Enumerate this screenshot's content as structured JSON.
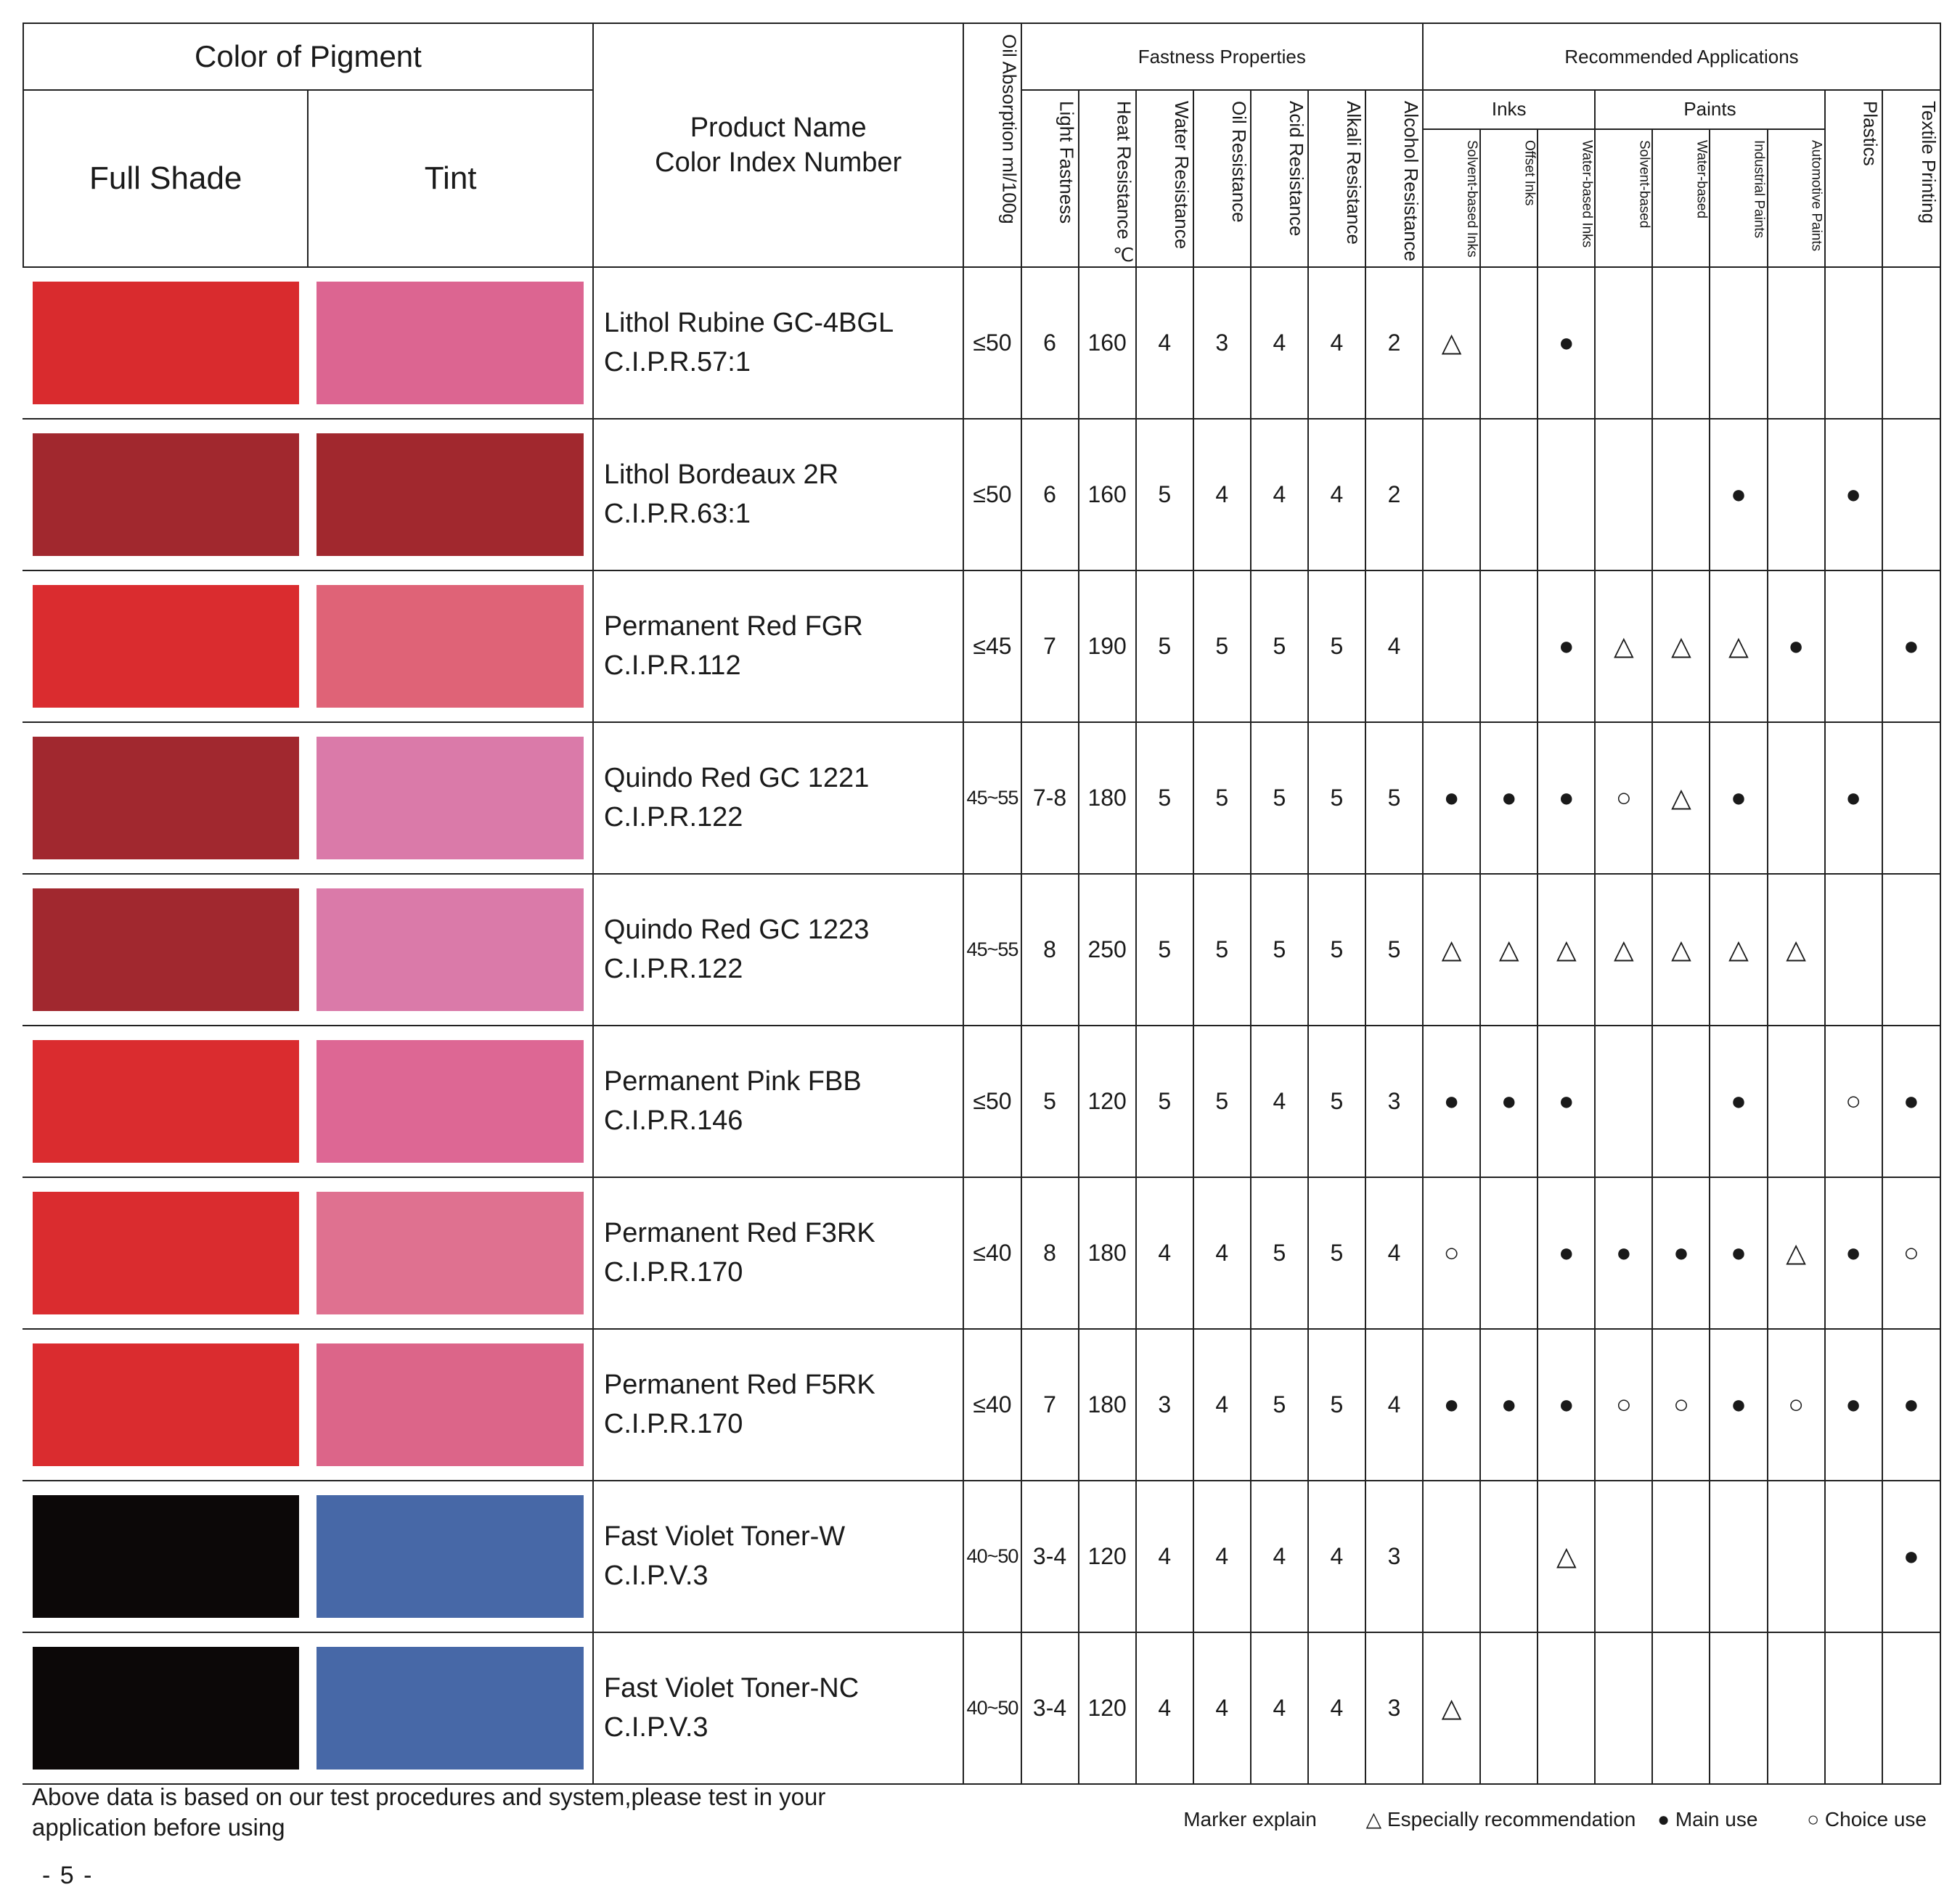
{
  "header": {
    "color_of_pigment": "Color of  Pigment",
    "full_shade": "Full Shade",
    "tint": "Tint",
    "product_line1": "Product Name",
    "product_line2": "Color Index Number",
    "oil_absorption": "Oil Absorption ml/100g",
    "fastness_group": "Fastness Properties",
    "applications_group": "Recommended Applications",
    "inks_group": "Inks",
    "paints_group": "Paints",
    "fastness_cols": [
      "Light Fastness",
      "Heat Resistance ℃",
      "Water Resistance",
      "Oil Resistance",
      "Acid Resistance",
      "Alkali Resistance",
      "Alcohol Resistance"
    ],
    "ink_cols": [
      "Solvent-based Inks",
      "Offset Inks",
      "Water-based Inks"
    ],
    "paint_cols": [
      "Solvent-based",
      "Water-based",
      "Industrial Paints",
      "Automotive Paints"
    ],
    "plastics": "Plastics",
    "textile": "Textile Printing"
  },
  "rows": [
    {
      "name": "Lithol Rubine GC-4BGL",
      "ci": "C.I.P.R.57:1",
      "full": "#d92b2e",
      "tint": "#dc6591",
      "oil": "≤50",
      "vals": [
        "6",
        "160",
        "4",
        "3",
        "4",
        "4",
        "2"
      ],
      "marks": [
        "△",
        "",
        "●",
        "",
        "",
        "",
        "",
        "",
        ""
      ]
    },
    {
      "name": "Lithol Bordeaux 2R",
      "ci": "C.I.P.R.63:1",
      "full": "#a1282e",
      "tint": "#a1282e",
      "oil": "≤50",
      "vals": [
        "6",
        "160",
        "5",
        "4",
        "4",
        "4",
        "2"
      ],
      "marks": [
        "",
        "",
        "",
        "",
        "",
        "●",
        "",
        "●",
        ""
      ]
    },
    {
      "name": "Permanent Red FGR",
      "ci": "C.I.P.R.112",
      "full": "#da2c2f",
      "tint": "#df6377",
      "oil": "≤45",
      "vals": [
        "7",
        "190",
        "5",
        "5",
        "5",
        "5",
        "4"
      ],
      "marks": [
        "",
        "",
        "●",
        "△",
        "△",
        "△",
        "●",
        "",
        "●"
      ]
    },
    {
      "name": "Quindo Red GC 1221",
      "ci": "C.I.P.R.122",
      "full": "#a1282f",
      "tint": "#da7aa9",
      "oil": "45~55",
      "vals": [
        "7-8",
        "180",
        "5",
        "5",
        "5",
        "5",
        "5"
      ],
      "marks": [
        "●",
        "●",
        "●",
        "○",
        "△",
        "●",
        "",
        "●",
        ""
      ]
    },
    {
      "name": "Quindo Red GC 1223",
      "ci": "C.I.P.R.122",
      "full": "#a1282f",
      "tint": "#da7aa9",
      "oil": "45~55",
      "vals": [
        "8",
        "250",
        "5",
        "5",
        "5",
        "5",
        "5"
      ],
      "marks": [
        "△",
        "△",
        "△",
        "△",
        "△",
        "△",
        "△",
        "",
        ""
      ]
    },
    {
      "name": "Permanent Pink FBB",
      "ci": "C.I.P.R.146",
      "full": "#da2c2f",
      "tint": "#dd6794",
      "oil": "≤50",
      "vals": [
        "5",
        "120",
        "5",
        "5",
        "4",
        "5",
        "3"
      ],
      "marks": [
        "●",
        "●",
        "●",
        "",
        "",
        "●",
        "",
        "○",
        "●"
      ]
    },
    {
      "name": "Permanent Red F3RK",
      "ci": "C.I.P.R.170",
      "full": "#da2c2f",
      "tint": "#df7190",
      "oil": "≤40",
      "vals": [
        "8",
        "180",
        "4",
        "4",
        "5",
        "5",
        "4"
      ],
      "marks": [
        "○",
        "",
        "●",
        "●",
        "●",
        "●",
        "△",
        "●",
        "○"
      ]
    },
    {
      "name": "Permanent Red F5RK",
      "ci": "C.I.P.R.170",
      "full": "#da2c2f",
      "tint": "#dc6589",
      "oil": "≤40",
      "vals": [
        "7",
        "180",
        "3",
        "4",
        "5",
        "5",
        "4"
      ],
      "marks": [
        "●",
        "●",
        "●",
        "○",
        "○",
        "●",
        "○",
        "●",
        "●"
      ]
    },
    {
      "name": "Fast Violet Toner-W",
      "ci": "C.I.P.V.3",
      "full": "#0c0808",
      "tint": "#4768a7",
      "oil": "40~50",
      "vals": [
        "3-4",
        "120",
        "4",
        "4",
        "4",
        "4",
        "3"
      ],
      "marks": [
        "",
        "",
        "△",
        "",
        "",
        "",
        "",
        "",
        "●"
      ]
    },
    {
      "name": "Fast Violet Toner-NC",
      "ci": "C.I.P.V.3",
      "full": "#0c0808",
      "tint": "#4768a7",
      "oil": "40~50",
      "vals": [
        "3-4",
        "120",
        "4",
        "4",
        "4",
        "4",
        "3"
      ],
      "marks": [
        "△",
        "",
        "",
        "",
        "",
        "",
        "",
        "",
        ""
      ]
    }
  ],
  "footer": {
    "note": "Above data is based on our test procedures and system,please test in your application before using",
    "legend_title": "Marker explain",
    "legend_triangle": "△ Especially recommendation",
    "legend_dot": "● Main use",
    "legend_circle": "○ Choice use",
    "page": "- 5 -"
  }
}
